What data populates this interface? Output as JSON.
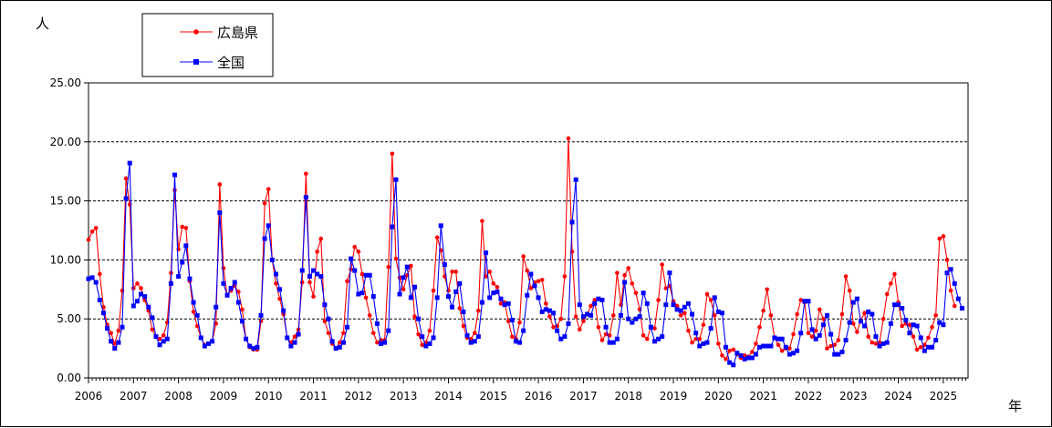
{
  "chart_data": {
    "type": "line",
    "ylabel": "人",
    "xlabel": "年",
    "ylim": [
      0,
      25
    ],
    "yticks": [
      "0.00",
      "5.00",
      "10.00",
      "15.00",
      "20.00",
      "25.00"
    ],
    "ytick_values": [
      0,
      5,
      10,
      15,
      20,
      25
    ],
    "year_labels": [
      "2006",
      "2007",
      "2008",
      "2009",
      "2010",
      "2011",
      "2012",
      "2013",
      "2014",
      "2015",
      "2016",
      "2017",
      "2018",
      "2019",
      "2020",
      "2021",
      "2022",
      "2023",
      "2024",
      "2025"
    ],
    "x_start": "2006-01",
    "grid": "horizontal dashed",
    "legend_position": "top-left",
    "series": [
      {
        "name": "広島県",
        "color": "#ff0000",
        "marker": "circle",
        "values": [
          11.7,
          12.4,
          12.7,
          8.8,
          6.0,
          4.5,
          3.8,
          2.9,
          4.0,
          7.4,
          16.9,
          14.7,
          7.6,
          8.0,
          7.6,
          6.6,
          5.7,
          4.1,
          3.5,
          3.3,
          3.6,
          4.7,
          8.9,
          15.9,
          10.9,
          12.8,
          12.7,
          8.2,
          5.6,
          4.4,
          3.4,
          2.8,
          2.9,
          3.1,
          4.6,
          16.4,
          9.3,
          7.0,
          7.4,
          7.8,
          7.3,
          5.8,
          3.3,
          2.6,
          2.4,
          2.4,
          4.8,
          14.8,
          16.0,
          10.0,
          8.0,
          6.7,
          5.4,
          3.4,
          3.0,
          3.5,
          4.1,
          8.1,
          17.3,
          8.1,
          6.9,
          10.7,
          11.8,
          4.8,
          3.8,
          2.9,
          2.5,
          3.0,
          3.8,
          8.2,
          9.2,
          11.1,
          10.7,
          8.8,
          6.8,
          5.3,
          3.8,
          3.0,
          3.2,
          3.2,
          9.4,
          19.0,
          10.1,
          8.5,
          7.5,
          8.7,
          9.5,
          5.2,
          3.7,
          2.8,
          3.0,
          4.0,
          7.4,
          11.9,
          10.8,
          8.6,
          7.4,
          9.0,
          9.0,
          5.9,
          4.4,
          3.4,
          3.3,
          3.8,
          5.7,
          13.3,
          8.6,
          9.0,
          8.0,
          7.7,
          6.3,
          6.4,
          4.8,
          3.5,
          3.3,
          4.7,
          10.3,
          9.1,
          7.6,
          8.1,
          8.2,
          8.3,
          6.3,
          5.2,
          4.3,
          4.4,
          5.0,
          8.6,
          20.3,
          10.7,
          5.2,
          4.1,
          4.8,
          5.4,
          6.1,
          6.6,
          4.3,
          3.2,
          3.7,
          3.6,
          5.3,
          8.9,
          6.2,
          8.7,
          9.3,
          8.0,
          7.2,
          5.8,
          3.6,
          3.3,
          4.3,
          4.2,
          6.6,
          9.6,
          7.6,
          7.8,
          6.5,
          6.1,
          5.3,
          5.5,
          4.0,
          3.0,
          3.3,
          3.3,
          4.5,
          7.1,
          6.6,
          5.3,
          2.9,
          1.9,
          1.6,
          2.3,
          2.4,
          2.0,
          1.7,
          1.9,
          1.8,
          2.2,
          2.9,
          4.3,
          5.7,
          7.5,
          5.3,
          3.4,
          2.8,
          2.3,
          2.5,
          2.5,
          3.7,
          5.4,
          6.6,
          6.4,
          3.8,
          3.5,
          4.0,
          5.8,
          5.0,
          2.5,
          2.7,
          2.8,
          3.2,
          5.4,
          8.6,
          7.4,
          4.6,
          3.9,
          4.9,
          5.5,
          3.5,
          3.0,
          2.9,
          3.0,
          5.0,
          7.1,
          8.0,
          8.8,
          6.4,
          4.4,
          4.6,
          4.5,
          3.5,
          2.4,
          2.6,
          2.8,
          3.4,
          4.3,
          5.3,
          11.8,
          12.0,
          10.0,
          7.4,
          6.1
        ]
      },
      {
        "name": "全国",
        "color": "#0000ff",
        "marker": "square",
        "values": [
          8.4,
          8.5,
          8.1,
          6.6,
          5.5,
          4.2,
          3.1,
          2.5,
          3.0,
          4.3,
          15.2,
          18.2,
          6.1,
          6.5,
          7.1,
          6.9,
          6.0,
          5.1,
          3.5,
          2.8,
          3.1,
          3.3,
          8.0,
          17.2,
          8.6,
          9.8,
          11.2,
          8.4,
          6.4,
          5.3,
          3.4,
          2.7,
          2.9,
          3.1,
          6.0,
          14.0,
          8.0,
          7.0,
          7.6,
          8.1,
          6.4,
          4.8,
          3.3,
          2.7,
          2.5,
          2.6,
          5.3,
          11.8,
          12.9,
          10.0,
          8.8,
          7.5,
          5.7,
          3.4,
          2.7,
          3.0,
          3.7,
          9.1,
          15.3,
          8.6,
          9.1,
          8.8,
          8.6,
          6.2,
          5.0,
          3.1,
          2.5,
          2.6,
          3.0,
          4.3,
          10.1,
          9.1,
          7.1,
          7.2,
          8.7,
          8.7,
          6.9,
          4.6,
          2.9,
          3.0,
          4.0,
          12.8,
          16.8,
          7.1,
          8.5,
          9.4,
          6.8,
          7.7,
          5.0,
          3.5,
          2.7,
          2.9,
          3.4,
          6.8,
          12.9,
          9.6,
          6.9,
          6.0,
          7.3,
          8.0,
          5.6,
          3.6,
          3.0,
          3.1,
          3.5,
          6.4,
          10.6,
          6.8,
          7.2,
          7.3,
          6.7,
          6.2,
          6.3,
          4.9,
          3.1,
          3.0,
          4.0,
          7.0,
          8.8,
          7.8,
          6.8,
          5.6,
          5.8,
          5.7,
          5.5,
          4.0,
          3.3,
          3.5,
          4.6,
          13.2,
          16.8,
          6.2,
          5.2,
          5.4,
          5.3,
          6.3,
          6.7,
          6.6,
          4.3,
          3.0,
          3.0,
          3.3,
          5.3,
          8.1,
          5.0,
          4.7,
          5.0,
          5.2,
          7.2,
          6.3,
          4.3,
          3.1,
          3.3,
          3.5,
          6.2,
          8.9,
          6.2,
          5.8,
          5.7,
          6.0,
          6.3,
          5.4,
          3.8,
          2.7,
          2.9,
          3.0,
          4.2,
          6.8,
          5.6,
          5.5,
          2.6,
          1.3,
          1.1,
          2.1,
          1.9,
          1.6,
          1.7,
          1.7,
          2.0,
          2.6,
          2.7,
          2.7,
          2.7,
          3.4,
          3.3,
          3.3,
          2.6,
          2.0,
          2.1,
          2.3,
          3.8,
          6.5,
          6.5,
          4.1,
          3.3,
          3.6,
          4.5,
          5.3,
          3.7,
          2.0,
          2.0,
          2.2,
          3.2,
          4.7,
          6.4,
          6.7,
          4.8,
          4.4,
          5.6,
          5.4,
          3.5,
          2.7,
          2.9,
          3.0,
          4.6,
          6.2,
          6.2,
          5.9,
          4.9,
          3.8,
          4.5,
          4.4,
          3.4,
          2.3,
          2.6,
          2.6,
          3.2,
          4.7,
          4.5,
          8.9,
          9.2,
          8.0,
          6.7,
          5.9
        ]
      }
    ]
  }
}
